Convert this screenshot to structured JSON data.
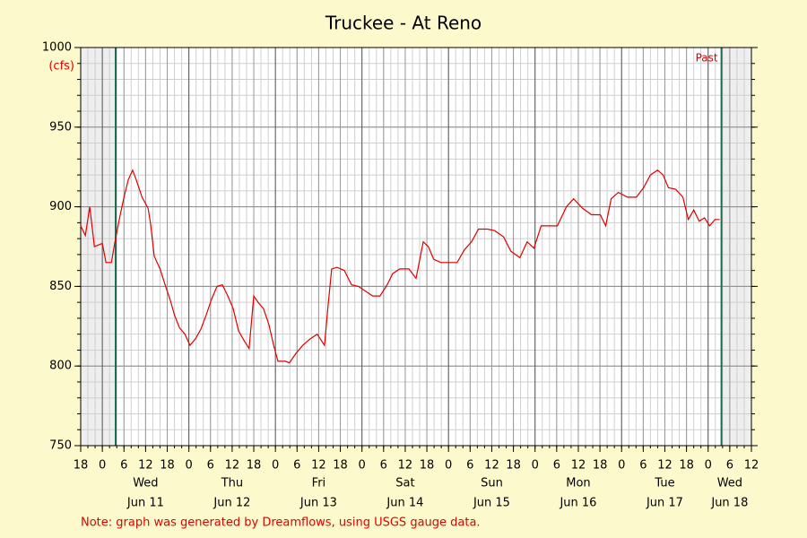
{
  "chart_data": {
    "type": "line",
    "title": "Truckee - At Reno",
    "y_unit": "(cfs)",
    "note": "Note: graph was generated by Dreamflows, using USGS gauge data.",
    "past_label": "Past",
    "markers": [
      3.7,
      171.7
    ],
    "color": "#e00000",
    "grid": true,
    "xlim": [
      -6,
      180
    ],
    "ylim": [
      750,
      1000
    ],
    "yticks": [
      750,
      800,
      850,
      900,
      950,
      1000
    ],
    "xticks": [
      {
        "value": -6,
        "label": "18"
      },
      {
        "value": 0,
        "label": "0"
      },
      {
        "value": 6,
        "label": "6"
      },
      {
        "value": 12,
        "label": "12"
      },
      {
        "value": 18,
        "label": "18"
      },
      {
        "value": 24,
        "label": "0"
      },
      {
        "value": 30,
        "label": "6"
      },
      {
        "value": 36,
        "label": "12"
      },
      {
        "value": 42,
        "label": "18"
      },
      {
        "value": 48,
        "label": "0"
      },
      {
        "value": 54,
        "label": "6"
      },
      {
        "value": 60,
        "label": "12"
      },
      {
        "value": 66,
        "label": "18"
      },
      {
        "value": 72,
        "label": "0"
      },
      {
        "value": 78,
        "label": "6"
      },
      {
        "value": 84,
        "label": "12"
      },
      {
        "value": 90,
        "label": "18"
      },
      {
        "value": 96,
        "label": "0"
      },
      {
        "value": 102,
        "label": "6"
      },
      {
        "value": 108,
        "label": "12"
      },
      {
        "value": 114,
        "label": "18"
      },
      {
        "value": 120,
        "label": "0"
      },
      {
        "value": 126,
        "label": "6"
      },
      {
        "value": 132,
        "label": "12"
      },
      {
        "value": 138,
        "label": "18"
      },
      {
        "value": 144,
        "label": "0"
      },
      {
        "value": 150,
        "label": "6"
      },
      {
        "value": 156,
        "label": "12"
      },
      {
        "value": 162,
        "label": "18"
      },
      {
        "value": 168,
        "label": "0"
      },
      {
        "value": 174,
        "label": "6"
      },
      {
        "value": 180,
        "label": "12"
      }
    ],
    "day_labels": [
      {
        "weekday": "Wed",
        "date": "Jun 11"
      },
      {
        "weekday": "Thu",
        "date": "Jun 12"
      },
      {
        "weekday": "Fri",
        "date": "Jun 13"
      },
      {
        "weekday": "Sat",
        "date": "Jun 14"
      },
      {
        "weekday": "Sun",
        "date": "Jun 15"
      },
      {
        "weekday": "Mon",
        "date": "Jun 16"
      },
      {
        "weekday": "Tue",
        "date": "Jun 17"
      },
      {
        "weekday": "Wed",
        "date": "Jun 18"
      }
    ],
    "x": [
      -6,
      -4.7,
      -3.5,
      -2.2,
      0,
      1,
      2.5,
      3.5,
      4.7,
      6,
      7.2,
      8.4,
      9.4,
      11,
      12.7,
      13.4,
      14.4,
      16,
      17.4,
      18.9,
      20,
      21.4,
      22.9,
      24.3,
      25.8,
      27.3,
      28.8,
      30.3,
      31.8,
      33.3,
      34.8,
      36.3,
      37.8,
      39.3,
      40.7,
      42,
      43.2,
      44.7,
      46.2,
      47.5,
      48.7,
      50.7,
      51.9,
      53.7,
      55.6,
      57.6,
      59.6,
      61.6,
      62.6,
      63.6,
      65.1,
      67.1,
      69.1,
      71,
      73,
      75,
      77,
      79,
      80.5,
      82.5,
      85,
      87,
      89,
      90.4,
      91.9,
      93.9,
      95.9,
      98.4,
      100.4,
      102.4,
      104.3,
      106.8,
      108.8,
      111.3,
      113.3,
      115.8,
      117.8,
      119.7,
      121.7,
      123.7,
      126.2,
      128.7,
      130.7,
      133.2,
      135.7,
      138.1,
      139.6,
      141.1,
      143.1,
      145.6,
      148.1,
      150.1,
      152,
      154,
      155.5,
      157,
      159,
      161,
      162.5,
      164,
      165.5,
      167,
      168.4,
      169.9,
      171.2
    ],
    "values": [
      888,
      882,
      900,
      875,
      877,
      865,
      865,
      878,
      892,
      906,
      917,
      923,
      917,
      906,
      899,
      889,
      869,
      861,
      851,
      841,
      832,
      824,
      820,
      813,
      817,
      823,
      832,
      842,
      850,
      851,
      844,
      836,
      822,
      816,
      811,
      844,
      840,
      836,
      826,
      813,
      803,
      803,
      802,
      808,
      813,
      817,
      820,
      813,
      838,
      861,
      862,
      860,
      851,
      850,
      847,
      844,
      844,
      851,
      858,
      861,
      861,
      855,
      878,
      875,
      867,
      865,
      865,
      865,
      873,
      878,
      886,
      886,
      885,
      881,
      872,
      868,
      878,
      874,
      888,
      888,
      888,
      900,
      905,
      899,
      895,
      895,
      888,
      905,
      909,
      906,
      906,
      912,
      920,
      923,
      920,
      912,
      911,
      906,
      892,
      898,
      891,
      893,
      888,
      892,
      892
    ]
  }
}
